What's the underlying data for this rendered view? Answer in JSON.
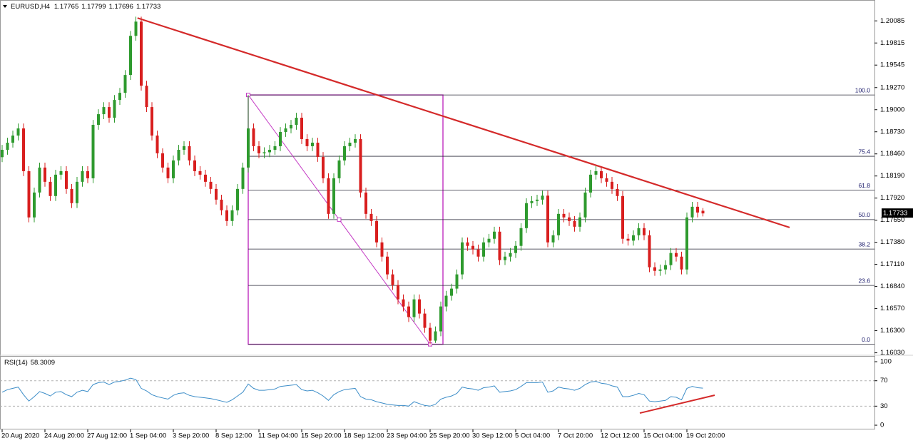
{
  "chart_data": [
    {
      "type": "candlestick",
      "symbol": "EURUSD,H4",
      "categories": [
        "20 Aug 2020",
        null,
        null,
        null,
        null,
        null,
        null,
        null,
        "24 Aug 20:00",
        null,
        null,
        null,
        null,
        null,
        null,
        null,
        "27 Aug 12:00",
        null,
        null,
        null,
        null,
        null,
        null,
        null,
        "1 Sep 04:00",
        null,
        null,
        null,
        null,
        null,
        null,
        null,
        "3 Sep 20:00",
        null,
        null,
        null,
        null,
        null,
        null,
        null,
        "8 Sep 12:00",
        null,
        null,
        null,
        null,
        null,
        null,
        null,
        "11 Sep 04:00",
        null,
        null,
        null,
        null,
        null,
        null,
        null,
        "15 Sep 20:00",
        null,
        null,
        null,
        null,
        null,
        null,
        null,
        "18 Sep 12:00",
        null,
        null,
        null,
        null,
        null,
        null,
        null,
        "23 Sep 04:00",
        null,
        null,
        null,
        null,
        null,
        null,
        null,
        "25 Sep 20:00",
        null,
        null,
        null,
        null,
        null,
        null,
        null,
        "30 Sep 12:00",
        null,
        null,
        null,
        null,
        null,
        null,
        null,
        "5 Oct 04:00",
        null,
        null,
        null,
        null,
        null,
        null,
        null,
        "7 Oct 20:00",
        null,
        null,
        null,
        null,
        null,
        null,
        null,
        "12 Oct 12:00",
        null,
        null,
        null,
        null,
        null,
        null,
        null,
        "15 Oct 04:00",
        null,
        null,
        null,
        null,
        null,
        null,
        null,
        "19 Oct 20:00",
        null,
        null,
        null
      ],
      "open": [
        1.1842,
        1.1851,
        1.18597,
        1.18684,
        1.18771,
        1.18249,
        1.17684,
        1.17988,
        1.18293,
        1.18119,
        1.17945,
        1.18206,
        1.18249,
        1.18032,
        1.17858,
        1.18119,
        1.18249,
        1.18162,
        1.18815,
        1.18945,
        1.19032,
        1.18902,
        1.19119,
        1.19206,
        1.19424,
        1.19902,
        1.20076,
        1.19293,
        1.19032,
        1.18684,
        1.18467,
        1.18293,
        1.18162,
        1.1838,
        1.1851,
        1.18554,
        1.1838,
        1.18249,
        1.18206,
        1.18119,
        1.18032,
        1.17901,
        1.17771,
        1.1764,
        1.17771,
        1.18032,
        1.18293,
        1.18771,
        1.18554,
        1.18467,
        1.1848,
        1.1851,
        1.18554,
        1.18728,
        1.18771,
        1.18815,
        1.18902,
        1.18641,
        1.18554,
        1.18597,
        1.18423,
        1.18162,
        1.17727,
        1.18162,
        1.1838,
        1.18554,
        1.18597,
        1.18641,
        1.17988,
        1.17727,
        1.1764,
        1.17379,
        1.17205,
        1.16988,
        1.16857,
        1.16683,
        1.16596,
        1.16466,
        1.16683,
        1.16509,
        1.16335,
        1.16178,
        1.16292,
        1.16596,
        1.16727,
        1.16814,
        1.16988,
        1.17379,
        1.17336,
        1.17292,
        1.17205,
        1.17379,
        1.17423,
        1.1751,
        1.17162,
        1.17205,
        1.17249,
        1.17336,
        1.17553,
        1.17858,
        1.17884,
        1.17901,
        1.1795,
        1.17379,
        1.17466,
        1.17727,
        1.17684,
        1.1764,
        1.1757,
        1.17684,
        1.17988,
        1.18206,
        1.18249,
        1.18162,
        1.18119,
        1.18032,
        1.17945,
        1.17423,
        1.174,
        1.17466,
        1.17553,
        1.17466,
        1.17075,
        1.17031,
        1.17048,
        1.17101,
        1.17249,
        1.17205,
        1.17048,
        1.17684,
        1.17814,
        1.17765
      ],
      "high": [
        1.1857,
        1.18657,
        1.18744,
        1.18831,
        1.18831,
        1.18309,
        1.18048,
        1.18353,
        1.18353,
        1.18179,
        1.18266,
        1.18309,
        1.18309,
        1.18092,
        1.18179,
        1.18309,
        1.18309,
        1.18875,
        1.19005,
        1.19092,
        1.19092,
        1.19179,
        1.19266,
        1.19484,
        1.19962,
        1.20136,
        1.20136,
        1.19353,
        1.19092,
        1.18744,
        1.18527,
        1.18353,
        1.1844,
        1.1857,
        1.18614,
        1.18614,
        1.1844,
        1.18309,
        1.18266,
        1.18179,
        1.18092,
        1.17961,
        1.17831,
        1.17831,
        1.18092,
        1.18353,
        1.1918,
        1.18831,
        1.18614,
        1.1854,
        1.1857,
        1.18614,
        1.18788,
        1.18831,
        1.18875,
        1.18962,
        1.18962,
        1.18701,
        1.18657,
        1.18657,
        1.18483,
        1.18222,
        1.18222,
        1.1844,
        1.18614,
        1.18657,
        1.18701,
        1.18701,
        1.18048,
        1.17787,
        1.177,
        1.17439,
        1.17265,
        1.17048,
        1.16917,
        1.16743,
        1.16656,
        1.16743,
        1.16743,
        1.16569,
        1.16395,
        1.16352,
        1.16656,
        1.16787,
        1.16874,
        1.17048,
        1.17439,
        1.17439,
        1.17396,
        1.17352,
        1.17439,
        1.17483,
        1.1757,
        1.1757,
        1.17265,
        1.17309,
        1.17396,
        1.17613,
        1.17918,
        1.17944,
        1.17961,
        1.1801,
        1.1801,
        1.17526,
        1.17787,
        1.17787,
        1.17744,
        1.177,
        1.17744,
        1.18048,
        1.18266,
        1.18309,
        1.18309,
        1.18222,
        1.18179,
        1.18092,
        1.18005,
        1.17483,
        1.17526,
        1.17613,
        1.17613,
        1.17526,
        1.17135,
        1.17108,
        1.17161,
        1.17309,
        1.17309,
        1.17265,
        1.17744,
        1.17874,
        1.17874,
        1.17799
      ],
      "low": [
        1.1836,
        1.1845,
        1.18537,
        1.18624,
        1.18189,
        1.17624,
        1.17624,
        1.17928,
        1.18059,
        1.17885,
        1.17885,
        1.18146,
        1.17972,
        1.17798,
        1.17798,
        1.18059,
        1.18102,
        1.18102,
        1.18755,
        1.18885,
        1.18842,
        1.18842,
        1.19059,
        1.19146,
        1.19364,
        1.19842,
        1.19233,
        1.18972,
        1.18624,
        1.18407,
        1.18233,
        1.18102,
        1.18102,
        1.1832,
        1.1845,
        1.1832,
        1.18189,
        1.18146,
        1.18059,
        1.17972,
        1.17841,
        1.17711,
        1.1758,
        1.1758,
        1.17711,
        1.17972,
        1.18233,
        1.18494,
        1.18407,
        1.18407,
        1.1842,
        1.1845,
        1.18494,
        1.18668,
        1.18711,
        1.18755,
        1.18581,
        1.18494,
        1.18494,
        1.18363,
        1.18102,
        1.17667,
        1.17667,
        1.18102,
        1.1832,
        1.18494,
        1.18537,
        1.17928,
        1.17667,
        1.1758,
        1.17319,
        1.17145,
        1.16928,
        1.16797,
        1.16623,
        1.16536,
        1.16406,
        1.16406,
        1.16449,
        1.16275,
        1.16134,
        1.1615,
        1.16232,
        1.16536,
        1.16667,
        1.16754,
        1.16928,
        1.17276,
        1.17232,
        1.17145,
        1.17145,
        1.17319,
        1.17363,
        1.17102,
        1.17102,
        1.17145,
        1.17189,
        1.17276,
        1.17493,
        1.17798,
        1.17824,
        1.17841,
        1.17319,
        1.17319,
        1.17406,
        1.17624,
        1.1758,
        1.1751,
        1.1751,
        1.17624,
        1.17928,
        1.18146,
        1.18102,
        1.18059,
        1.17972,
        1.17885,
        1.17363,
        1.1734,
        1.1734,
        1.17406,
        1.17406,
        1.17015,
        1.16971,
        1.16971,
        1.16988,
        1.17041,
        1.17145,
        1.16988,
        1.16988,
        1.17624,
        1.17684,
        1.17696
      ],
      "close": [
        1.1851,
        1.18597,
        1.18684,
        1.18771,
        1.18249,
        1.17684,
        1.17988,
        1.18293,
        1.18119,
        1.17945,
        1.18206,
        1.18249,
        1.18032,
        1.17858,
        1.18119,
        1.18249,
        1.18162,
        1.18815,
        1.18945,
        1.19032,
        1.18902,
        1.19119,
        1.19206,
        1.19424,
        1.19902,
        1.20076,
        1.19293,
        1.19032,
        1.18684,
        1.18467,
        1.18293,
        1.18162,
        1.1838,
        1.1851,
        1.18554,
        1.1838,
        1.18249,
        1.18206,
        1.18119,
        1.18032,
        1.17901,
        1.17771,
        1.1764,
        1.17771,
        1.18032,
        1.18293,
        1.18771,
        1.18554,
        1.18467,
        1.1848,
        1.1851,
        1.18554,
        1.18728,
        1.18771,
        1.18815,
        1.18902,
        1.18641,
        1.18554,
        1.18597,
        1.18423,
        1.18162,
        1.17727,
        1.18162,
        1.1838,
        1.18554,
        1.18597,
        1.18641,
        1.17988,
        1.17727,
        1.1764,
        1.17379,
        1.17205,
        1.16988,
        1.16857,
        1.16683,
        1.16596,
        1.16466,
        1.16683,
        1.16509,
        1.16335,
        1.16178,
        1.16292,
        1.16596,
        1.16727,
        1.16814,
        1.16988,
        1.17379,
        1.17336,
        1.17292,
        1.17205,
        1.17379,
        1.17423,
        1.1751,
        1.17162,
        1.17205,
        1.17249,
        1.17336,
        1.17553,
        1.17858,
        1.17884,
        1.17901,
        1.1795,
        1.17379,
        1.17466,
        1.17727,
        1.17684,
        1.1764,
        1.1757,
        1.17684,
        1.17988,
        1.18206,
        1.18249,
        1.18162,
        1.18119,
        1.18032,
        1.17945,
        1.17423,
        1.174,
        1.17466,
        1.17553,
        1.17466,
        1.17075,
        1.17031,
        1.17048,
        1.17101,
        1.17249,
        1.17205,
        1.17048,
        1.17684,
        1.17814,
        1.17744,
        1.17733
      ],
      "up_color": "#2e9a2e",
      "down_color": "#d81e1e",
      "ylim": [
        1.16,
        1.2034
      ],
      "yticks": [
        1.20085,
        1.19815,
        1.19545,
        {
          "value": 1.1927,
          "label": "1.19270"
        },
        {
          "value": 1.19,
          "label": "1.19000"
        },
        {
          "value": 1.1873,
          "label": "1.18730"
        },
        {
          "value": 1.1846,
          "label": "1.18460"
        },
        {
          "value": 1.1819,
          "label": "1.18190"
        },
        {
          "value": 1.1792,
          "label": "1.17920"
        },
        {
          "value": 1.1765,
          "label": "1.17650"
        },
        {
          "value": 1.1738,
          "label": "1.17380"
        },
        {
          "value": 1.1711,
          "label": "1.17110"
        },
        {
          "value": 1.1684,
          "label": "1.16840"
        },
        {
          "value": 1.1657,
          "label": "1.16570"
        },
        {
          "value": 1.163,
          "label": "1.16300"
        },
        {
          "value": 1.1603,
          "label": "1.16030"
        }
      ],
      "grid": false,
      "trendline": {
        "x": [
          25.3,
          147.2
        ],
        "y": [
          1.2012,
          1.17561
        ],
        "color": "#d42a2a"
      },
      "fibonacci": {
        "x": [
          46,
          80
        ],
        "box_x_end": 82.4,
        "high": 1.1918,
        "low": 1.16134,
        "color": "#c43ac4",
        "levels": [
          {
            "value": 100,
            "label": "100.0"
          },
          75.4,
          61.8,
          {
            "value": 50,
            "label": "50.0"
          },
          38.2,
          23.6,
          {
            "value": 0,
            "label": "0.0"
          }
        ]
      }
    },
    {
      "type": "line",
      "title": "RSI(14)",
      "color": "#3c8dc8",
      "values": [
        52,
        56,
        58,
        60,
        48,
        38,
        45,
        53,
        50,
        46,
        52,
        53,
        48,
        45,
        52,
        55,
        53,
        64,
        67,
        68,
        64,
        68,
        69,
        71,
        74,
        72,
        58,
        54,
        48,
        45,
        43,
        41,
        47,
        50,
        51,
        47,
        45,
        44,
        43,
        42,
        40,
        38,
        36,
        40,
        46,
        52,
        65,
        58,
        55,
        55,
        56,
        57,
        61,
        62,
        63,
        64,
        56,
        54,
        55,
        51,
        46,
        39,
        48,
        53,
        56,
        57,
        58,
        45,
        41,
        40,
        37,
        35,
        33,
        32,
        31,
        31,
        30,
        37,
        34,
        31,
        30,
        33,
        41,
        44,
        46,
        50,
        60,
        58,
        57,
        55,
        59,
        60,
        62,
        52,
        53,
        54,
        56,
        61,
        67,
        67,
        67,
        68,
        52,
        54,
        60,
        58,
        57,
        55,
        58,
        64,
        68,
        69,
        66,
        65,
        62,
        60,
        45,
        45,
        47,
        50,
        48,
        38,
        37,
        38,
        39,
        45,
        44,
        40,
        58,
        61,
        59,
        58.3009
      ],
      "ylim": [
        -6.7,
        107.9
      ],
      "yticks": [
        100,
        70,
        30,
        0
      ],
      "levels": [
        70,
        30
      ],
      "trendline": {
        "x": [
          119.2,
          133.2
        ],
        "y": [
          19.1,
          47.2
        ],
        "color": "#d42a2a"
      }
    }
  ]
}
